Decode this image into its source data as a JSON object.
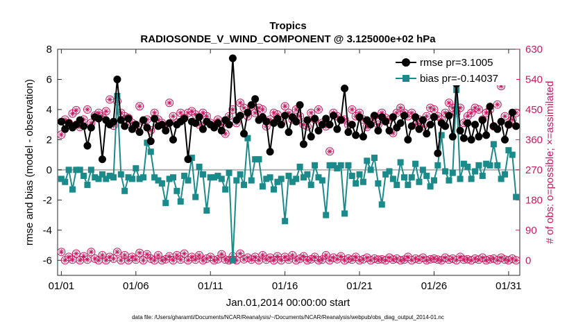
{
  "chart_data": {
    "type": "line",
    "title": "Tropics",
    "subtitle": "RADIOSONDE_V_WIND_COMPONENT @ 3.125000e+02 hPa",
    "xlabel": "Jan.01,2014 00:00:00 start",
    "ylabel": "rmse and bias (model - observation)",
    "y2label": "# of obs: o=possible; ×=assimilated",
    "xlim": [
      0.75,
      31.75
    ],
    "ylim": [
      -7,
      8
    ],
    "y2lim": [
      -45,
      630
    ],
    "xticks": [
      1,
      6,
      11,
      16,
      21,
      26,
      31
    ],
    "xticklabels": [
      "01/01",
      "01/06",
      "01/11",
      "01/16",
      "01/21",
      "01/26",
      "01/31"
    ],
    "yticks": [
      -6,
      -4,
      -2,
      0,
      2,
      4,
      6,
      8
    ],
    "y2ticks": [
      0,
      90,
      180,
      270,
      360,
      450,
      540,
      630
    ],
    "colors": {
      "rmse": "#000000",
      "bias": "#1a8a8a",
      "obs": "#c8185f",
      "zero": "#b4b4b4"
    },
    "legend": {
      "position": "top-right",
      "rmse": "rmse pr=3.1005",
      "bias": "bias pr=-0.14037"
    },
    "series": [
      {
        "name": "rmse",
        "x": [
          1.0,
          1.25,
          1.5,
          1.75,
          2.0,
          2.25,
          2.5,
          2.75,
          3.0,
          3.25,
          3.5,
          3.75,
          4.0,
          4.25,
          4.5,
          4.75,
          5.0,
          5.25,
          5.5,
          5.75,
          6.0,
          6.25,
          6.5,
          6.75,
          7.0,
          7.25,
          7.5,
          7.75,
          8.0,
          8.25,
          8.5,
          8.75,
          9.0,
          9.25,
          9.5,
          9.75,
          10.0,
          10.25,
          10.5,
          10.75,
          11.0,
          11.25,
          11.5,
          11.75,
          12.0,
          12.25,
          12.5,
          12.75,
          13.0,
          13.25,
          13.5,
          13.75,
          14.0,
          14.25,
          14.5,
          14.75,
          15.0,
          15.25,
          15.5,
          15.75,
          16.0,
          16.25,
          16.5,
          16.75,
          17.0,
          17.25,
          17.5,
          17.75,
          18.0,
          18.25,
          18.5,
          18.75,
          19.0,
          19.25,
          19.5,
          19.75,
          20.0,
          20.25,
          20.5,
          20.75,
          21.0,
          21.25,
          21.5,
          21.75,
          22.0,
          22.25,
          22.5,
          22.75,
          23.0,
          23.25,
          23.5,
          23.75,
          24.0,
          24.25,
          24.5,
          24.75,
          25.0,
          25.25,
          25.5,
          25.75,
          26.0,
          26.25,
          26.5,
          26.75,
          27.0,
          27.25,
          27.5,
          27.75,
          28.0,
          28.25,
          28.5,
          28.75,
          29.0,
          29.25,
          29.5,
          29.75,
          30.0,
          30.25,
          30.5,
          30.75,
          31.0,
          31.25,
          31.5
        ],
        "values": [
          3.2,
          2.7,
          3.1,
          2.8,
          3.0,
          3.3,
          2.9,
          1.6,
          2.8,
          3.5,
          3.4,
          0.7,
          3.3,
          3.0,
          3.2,
          6.0,
          3.3,
          2.9,
          3.4,
          2.7,
          3.0,
          2.5,
          3.3,
          2.8,
          1.9,
          3.4,
          2.9,
          3.0,
          2.6,
          3.1,
          2.0,
          3.0,
          3.2,
          3.4,
          0.7,
          3.2,
          3.1,
          3.5,
          2.7,
          3.2,
          3.0,
          2.8,
          3.1,
          2.6,
          3.3,
          3.0,
          7.4,
          3.3,
          3.6,
          2.4,
          3.8,
          4.3,
          4.7,
          3.3,
          3.5,
          3.2,
          1.2,
          3.1,
          3.4,
          3.0,
          3.6,
          2.5,
          3.5,
          3.2,
          4.3,
          1.7,
          3.3,
          2.2,
          3.4,
          2.6,
          3.0,
          3.4,
          3.0,
          3.6,
          2.7,
          3.3,
          5.4,
          2.5,
          3.0,
          2.3,
          3.5,
          2.2,
          3.3,
          3.0,
          3.6,
          2.6,
          3.5,
          3.2,
          2.6,
          3.5,
          2.8,
          3.1,
          3.6,
          2.0,
          2.9,
          3.5,
          2.7,
          3.3,
          2.4,
          3.0,
          3.5,
          1.1,
          3.1,
          2.9,
          3.6,
          2.2,
          5.7,
          2.6,
          2.1,
          3.1,
          2.0,
          3.0,
          2.2,
          3.3,
          2.3,
          4.2,
          2.9,
          2.7,
          3.2,
          2.0,
          3.0,
          3.8,
          2.9
        ]
      },
      {
        "name": "bias",
        "x": [
          1.0,
          1.25,
          1.5,
          1.75,
          2.0,
          2.25,
          2.5,
          2.75,
          3.0,
          3.25,
          3.5,
          3.75,
          4.0,
          4.25,
          4.5,
          4.75,
          5.0,
          5.25,
          5.5,
          5.75,
          6.0,
          6.25,
          6.5,
          6.75,
          7.0,
          7.25,
          7.5,
          7.75,
          8.0,
          8.25,
          8.5,
          8.75,
          9.0,
          9.25,
          9.5,
          9.75,
          10.0,
          10.25,
          10.5,
          10.75,
          11.0,
          11.25,
          11.5,
          11.75,
          12.0,
          12.25,
          12.5,
          12.75,
          13.0,
          13.25,
          13.5,
          13.75,
          14.0,
          14.25,
          14.5,
          14.75,
          15.0,
          15.25,
          15.5,
          15.75,
          16.0,
          16.25,
          16.5,
          16.75,
          17.0,
          17.25,
          17.5,
          17.75,
          18.0,
          18.25,
          18.5,
          18.75,
          19.0,
          19.25,
          19.5,
          19.75,
          20.0,
          20.25,
          20.5,
          20.75,
          21.0,
          21.25,
          21.5,
          21.75,
          22.0,
          22.25,
          22.5,
          22.75,
          23.0,
          23.25,
          23.5,
          23.75,
          24.0,
          24.25,
          24.5,
          24.75,
          25.0,
          25.25,
          25.5,
          25.75,
          26.0,
          26.25,
          26.5,
          26.75,
          27.0,
          27.25,
          27.5,
          27.75,
          28.0,
          28.25,
          28.5,
          28.75,
          29.0,
          29.25,
          29.5,
          29.75,
          30.0,
          30.25,
          30.5,
          30.75,
          31.0,
          31.25,
          31.5
        ],
        "values": [
          -0.6,
          -0.8,
          0.0,
          -1.3,
          0.0,
          0.0,
          -0.4,
          -1.0,
          0.0,
          -0.5,
          -0.6,
          -0.3,
          -0.6,
          -0.4,
          -0.5,
          4.9,
          -0.3,
          -1.4,
          -0.5,
          -0.6,
          0.1,
          -0.6,
          -0.5,
          1.8,
          1.2,
          -0.5,
          -0.7,
          -0.9,
          -2.2,
          -0.6,
          -0.5,
          -1.4,
          -2.1,
          -0.4,
          -0.7,
          0.8,
          -1.8,
          0.2,
          -0.3,
          -2.7,
          -0.5,
          -0.5,
          -0.4,
          -0.6,
          -1.3,
          -0.2,
          -6.0,
          -0.7,
          -0.3,
          -1.0,
          2.1,
          -0.7,
          0.7,
          0.7,
          -1.1,
          -0.6,
          -0.5,
          -1.3,
          -0.8,
          -0.6,
          -3.4,
          -0.4,
          -0.8,
          -0.6,
          0.2,
          -0.5,
          -0.3,
          -1.0,
          0.3,
          -0.5,
          -0.7,
          -3.0,
          0.3,
          0.3,
          0.1,
          0.3,
          -2.9,
          0.3,
          -0.4,
          -0.9,
          -0.3,
          -0.8,
          0.6,
          0.0,
          0.8,
          -0.9,
          -2.3,
          -0.3,
          -0.1,
          -0.6,
          -1.0,
          0.5,
          -0.5,
          -1.0,
          -0.5,
          0.4,
          -0.8,
          0.0,
          -0.4,
          -1.1,
          -0.7,
          0.3,
          2.3,
          -0.1,
          -0.7,
          -0.2,
          5.3,
          -0.6,
          0.4,
          0.2,
          -0.6,
          -0.1,
          0.3,
          -0.4,
          0.4,
          0.3,
          1.7,
          0.3,
          -0.6,
          -0.3,
          1.3,
          1.0,
          -1.8
        ]
      },
      {
        "name": "obs_possible_upper",
        "axis": "right",
        "x": [
          1.0,
          1.25,
          1.5,
          1.75,
          2.0,
          2.25,
          2.5,
          2.75,
          3.0,
          3.25,
          3.5,
          3.75,
          4.0,
          4.25,
          4.5,
          4.75,
          5.0,
          5.25,
          5.5,
          5.75,
          6.0,
          6.25,
          6.5,
          6.75,
          7.0,
          7.25,
          7.5,
          7.75,
          8.0,
          8.25,
          8.5,
          8.75,
          9.0,
          9.25,
          9.5,
          9.75,
          10.0,
          10.25,
          10.5,
          10.75,
          11.0,
          11.25,
          11.5,
          11.75,
          12.0,
          12.25,
          12.5,
          12.75,
          13.0,
          13.25,
          13.5,
          13.75,
          14.0,
          14.25,
          14.5,
          14.75,
          15.0,
          15.25,
          15.5,
          15.75,
          16.0,
          16.25,
          16.5,
          16.75,
          17.0,
          17.25,
          17.5,
          17.75,
          18.0,
          18.25,
          18.5,
          18.75,
          19.0,
          19.25,
          19.5,
          19.75,
          20.0,
          20.25,
          20.5,
          20.75,
          21.0,
          21.25,
          21.5,
          21.75,
          22.0,
          22.25,
          22.5,
          22.75,
          23.0,
          23.25,
          23.5,
          23.75,
          24.0,
          24.25,
          24.5,
          24.75,
          25.0,
          25.25,
          25.5,
          25.75,
          26.0,
          26.25,
          26.5,
          26.75,
          27.0,
          27.25,
          27.5,
          27.75,
          28.0,
          28.25,
          28.5,
          28.75,
          29.0,
          29.25,
          29.5,
          29.75,
          30.0,
          30.25,
          30.5,
          30.75,
          31.0,
          31.25,
          31.5
        ],
        "values": [
          375,
          420,
          410,
          438,
          448,
          398,
          420,
          450,
          410,
          432,
          440,
          430,
          445,
          480,
          402,
          475,
          440,
          430,
          425,
          410,
          395,
          460,
          415,
          420,
          388,
          440,
          420,
          410,
          400,
          470,
          430,
          410,
          440,
          425,
          440,
          445,
          435,
          405,
          440,
          430,
          410,
          400,
          420,
          405,
          378,
          430,
          450,
          410,
          470,
          455,
          430,
          460,
          440,
          455,
          450,
          400,
          420,
          440,
          435,
          410,
          460,
          440,
          420,
          450,
          430,
          405,
          400,
          440,
          420,
          450,
          410,
          400,
          325,
          440,
          430,
          420,
          420,
          405,
          450,
          430,
          440,
          420,
          398,
          410,
          430,
          405,
          440,
          425,
          420,
          380,
          440,
          455,
          440,
          430,
          440,
          405,
          420,
          400,
          430,
          455,
          450,
          430,
          420,
          440,
          470,
          455,
          440,
          455,
          410,
          430,
          440,
          455,
          450,
          420,
          440,
          450,
          400,
          465,
          520,
          430,
          405,
          420,
          440
        ]
      },
      {
        "name": "obs_possible_lower",
        "axis": "right",
        "x": [
          1.0,
          1.25,
          1.5,
          1.75,
          2.0,
          2.25,
          2.5,
          2.75,
          3.0,
          3.25,
          3.5,
          3.75,
          4.0,
          4.25,
          4.5,
          4.75,
          5.0,
          5.25,
          5.5,
          5.75,
          6.0,
          6.25,
          6.5,
          6.75,
          7.0,
          7.25,
          7.5,
          7.75,
          8.0,
          8.25,
          8.5,
          8.75,
          9.0,
          9.25,
          9.5,
          9.75,
          10.0,
          10.25,
          10.5,
          10.75,
          11.0,
          11.25,
          11.5,
          11.75,
          12.0,
          12.25,
          12.5,
          12.75,
          13.0,
          13.25,
          13.5,
          13.75,
          14.0,
          14.25,
          14.5,
          14.75,
          15.0,
          15.25,
          15.5,
          15.75,
          16.0,
          16.25,
          16.5,
          16.75,
          17.0,
          17.25,
          17.5,
          17.75,
          18.0,
          18.25,
          18.5,
          18.75,
          19.0,
          19.25,
          19.5,
          19.75,
          20.0,
          20.25,
          20.5,
          20.75,
          21.0,
          21.25,
          21.5,
          21.75,
          22.0,
          22.25,
          22.5,
          22.75,
          23.0,
          23.25,
          23.5,
          23.75,
          24.0,
          24.25,
          24.5,
          24.75,
          25.0,
          25.25,
          25.5,
          25.75,
          26.0,
          26.25,
          26.5,
          26.75,
          27.0,
          27.25,
          27.5,
          27.75,
          28.0,
          28.25,
          28.5,
          28.75,
          29.0,
          29.25,
          29.5,
          29.75,
          30.0,
          30.25,
          30.5,
          30.75,
          31.0,
          31.25,
          31.5
        ],
        "values": [
          25,
          0,
          10,
          2,
          20,
          0,
          12,
          2,
          25,
          5,
          0,
          15,
          0,
          10,
          5,
          25,
          0,
          15,
          0,
          10,
          2,
          22,
          0,
          18,
          5,
          0,
          15,
          0,
          3,
          12,
          0,
          15,
          2,
          20,
          0,
          10,
          2,
          15,
          0,
          5,
          10,
          0,
          3,
          18,
          2,
          0,
          12,
          0,
          20,
          3,
          8,
          2,
          10,
          0,
          15,
          2,
          8,
          0,
          12,
          0,
          10,
          2,
          15,
          0,
          5,
          12,
          0,
          3,
          10,
          0,
          2,
          15,
          0,
          8,
          3,
          12,
          0,
          5,
          2,
          10,
          0,
          3,
          8,
          0,
          5,
          2,
          3,
          0,
          8,
          2,
          5,
          0,
          2,
          10,
          0,
          5,
          2,
          8,
          0,
          3,
          5,
          2,
          0,
          8,
          2,
          5,
          0,
          10,
          2,
          3,
          0,
          5,
          2,
          8,
          0,
          3,
          5,
          0,
          8,
          2,
          0,
          5,
          0
        ]
      }
    ]
  },
  "footer": {
    "data_file": "data file: /Users/gharamti/Documents/NCAR/Reanalysis/~/Documents/NCAR/Reanalysis/webpub/obs_diag_output_2014-01.nc"
  }
}
